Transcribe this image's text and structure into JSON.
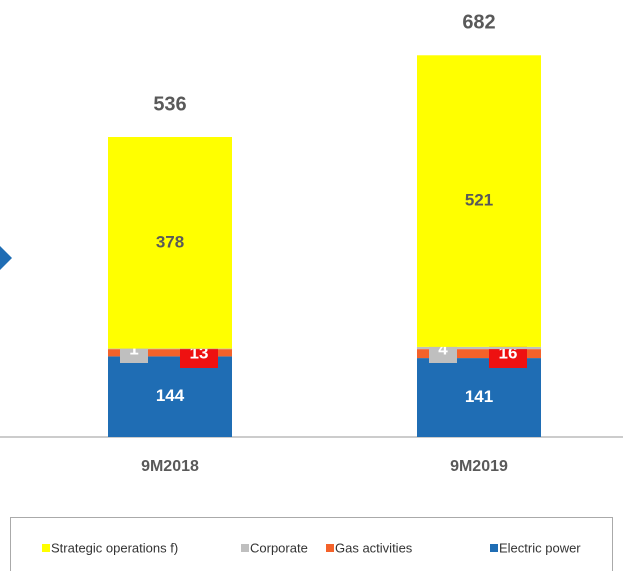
{
  "chart_data": {
    "type": "stacked_bar",
    "categories": [
      "9M2018",
      "9M2019"
    ],
    "series": [
      {
        "name": "Electric power",
        "color": "#1f6db4",
        "values": [
          144,
          141
        ]
      },
      {
        "name": "Gas activities",
        "color": "#f4622a",
        "values": [
          13,
          16
        ]
      },
      {
        "name": "Corporate",
        "color": "#bfbfbf",
        "values": [
          1,
          4
        ]
      },
      {
        "name": "Strategic operations f)",
        "color": "#ffff00",
        "values": [
          378,
          521
        ]
      }
    ],
    "totals": [
      536,
      682
    ]
  }
}
